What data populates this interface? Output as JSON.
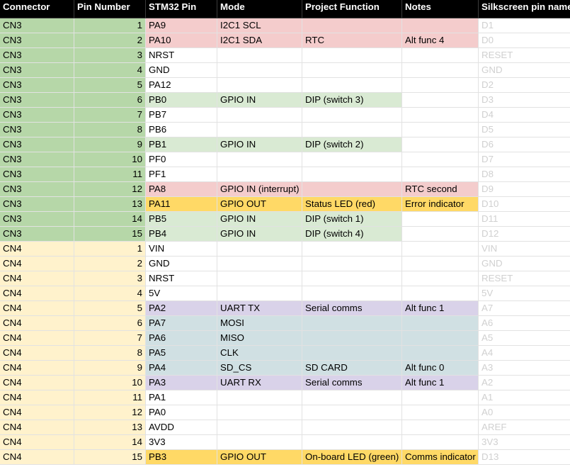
{
  "headers": [
    "Connector",
    "Pin Number",
    "STM32 Pin",
    "Mode",
    "Project Function",
    "Notes",
    "Silkscreen pin name"
  ],
  "colors": {
    "cn3": "#b6d7a8",
    "cn4": "#fff2cc",
    "rtc_red": "#f4cccc",
    "dip_green": "#d9ead3",
    "led_orange": "#ffd966",
    "uart_purple": "#d9d2e9",
    "spi_blue": "#d0e0e3",
    "silk_text": "#d0d0d0"
  },
  "rows": [
    {
      "connector": "CN3",
      "pin": "1",
      "stm32": "PA9",
      "mode": "I2C1 SCL",
      "func": "",
      "notes": "",
      "silk": "D1"
    },
    {
      "connector": "CN3",
      "pin": "2",
      "stm32": "PA10",
      "mode": "I2C1 SDA",
      "func": "RTC",
      "notes": "Alt func 4",
      "silk": "D0"
    },
    {
      "connector": "CN3",
      "pin": "3",
      "stm32": "NRST",
      "mode": "",
      "func": "",
      "notes": "",
      "silk": "RESET"
    },
    {
      "connector": "CN3",
      "pin": "4",
      "stm32": "GND",
      "mode": "",
      "func": "",
      "notes": "",
      "silk": "GND"
    },
    {
      "connector": "CN3",
      "pin": "5",
      "stm32": "PA12",
      "mode": "",
      "func": "",
      "notes": "",
      "silk": "D2"
    },
    {
      "connector": "CN3",
      "pin": "6",
      "stm32": "PB0",
      "mode": "GPIO IN",
      "func": "DIP (switch 3)",
      "notes": "",
      "silk": "D3"
    },
    {
      "connector": "CN3",
      "pin": "7",
      "stm32": "PB7",
      "mode": "",
      "func": "",
      "notes": "",
      "silk": "D4"
    },
    {
      "connector": "CN3",
      "pin": "8",
      "stm32": "PB6",
      "mode": "",
      "func": "",
      "notes": "",
      "silk": "D5"
    },
    {
      "connector": "CN3",
      "pin": "9",
      "stm32": "PB1",
      "mode": "GPIO IN",
      "func": "DIP (switch 2)",
      "notes": "",
      "silk": "D6"
    },
    {
      "connector": "CN3",
      "pin": "10",
      "stm32": "PF0",
      "mode": "",
      "func": "",
      "notes": "",
      "silk": "D7"
    },
    {
      "connector": "CN3",
      "pin": "11",
      "stm32": "PF1",
      "mode": "",
      "func": "",
      "notes": "",
      "silk": "D8"
    },
    {
      "connector": "CN3",
      "pin": "12",
      "stm32": "PA8",
      "mode": "GPIO IN (interrupt)",
      "func": "",
      "notes": "RTC second",
      "silk": "D9"
    },
    {
      "connector": "CN3",
      "pin": "13",
      "stm32": "PA11",
      "mode": "GPIO OUT",
      "func": "Status LED (red)",
      "notes": "Error indicator",
      "silk": "D10"
    },
    {
      "connector": "CN3",
      "pin": "14",
      "stm32": "PB5",
      "mode": "GPIO IN",
      "func": "DIP (switch 1)",
      "notes": "",
      "silk": "D11"
    },
    {
      "connector": "CN3",
      "pin": "15",
      "stm32": "PB4",
      "mode": "GPIO IN",
      "func": "DIP (switch 4)",
      "notes": "",
      "silk": "D12"
    },
    {
      "connector": "CN4",
      "pin": "1",
      "stm32": "VIN",
      "mode": "",
      "func": "",
      "notes": "",
      "silk": "VIN"
    },
    {
      "connector": "CN4",
      "pin": "2",
      "stm32": "GND",
      "mode": "",
      "func": "",
      "notes": "",
      "silk": "GND"
    },
    {
      "connector": "CN4",
      "pin": "3",
      "stm32": "NRST",
      "mode": "",
      "func": "",
      "notes": "",
      "silk": "RESET"
    },
    {
      "connector": "CN4",
      "pin": "4",
      "stm32": "5V",
      "mode": "",
      "func": "",
      "notes": "",
      "silk": "5V"
    },
    {
      "connector": "CN4",
      "pin": "5",
      "stm32": "PA2",
      "mode": "UART TX",
      "func": "Serial comms",
      "notes": "Alt func 1",
      "silk": "A7"
    },
    {
      "connector": "CN4",
      "pin": "6",
      "stm32": "PA7",
      "mode": "MOSI",
      "func": "",
      "notes": "",
      "silk": "A6"
    },
    {
      "connector": "CN4",
      "pin": "7",
      "stm32": "PA6",
      "mode": "MISO",
      "func": "",
      "notes": "",
      "silk": "A5"
    },
    {
      "connector": "CN4",
      "pin": "8",
      "stm32": "PA5",
      "mode": "CLK",
      "func": "",
      "notes": "",
      "silk": "A4"
    },
    {
      "connector": "CN4",
      "pin": "9",
      "stm32": "PA4",
      "mode": "SD_CS",
      "func": "SD CARD",
      "notes": "Alt func 0",
      "silk": "A3"
    },
    {
      "connector": "CN4",
      "pin": "10",
      "stm32": "PA3",
      "mode": "UART RX",
      "func": "Serial comms",
      "notes": "Alt func 1",
      "silk": "A2"
    },
    {
      "connector": "CN4",
      "pin": "11",
      "stm32": "PA1",
      "mode": "",
      "func": "",
      "notes": "",
      "silk": "A1"
    },
    {
      "connector": "CN4",
      "pin": "12",
      "stm32": "PA0",
      "mode": "",
      "func": "",
      "notes": "",
      "silk": "A0"
    },
    {
      "connector": "CN4",
      "pin": "13",
      "stm32": "AVDD",
      "mode": "",
      "func": "",
      "notes": "",
      "silk": "AREF"
    },
    {
      "connector": "CN4",
      "pin": "14",
      "stm32": "3V3",
      "mode": "",
      "func": "",
      "notes": "",
      "silk": "3V3"
    },
    {
      "connector": "CN4",
      "pin": "15",
      "stm32": "PB3",
      "mode": "GPIO OUT",
      "func": "On-board LED (green)",
      "notes": "Comms indicator",
      "silk": "D13"
    }
  ]
}
